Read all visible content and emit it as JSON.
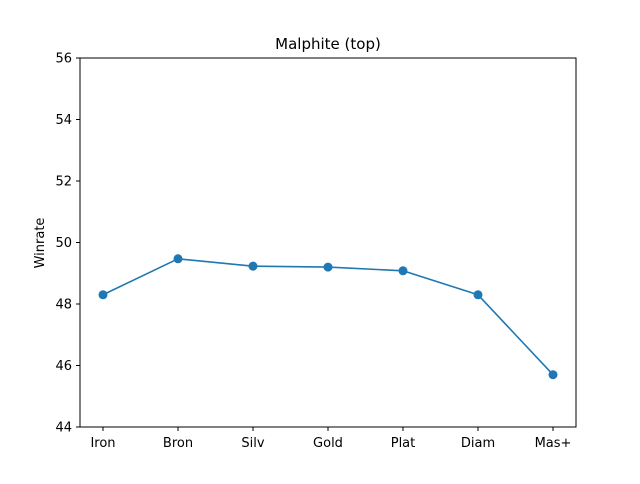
{
  "chart_data": {
    "type": "line",
    "title": "Malphite (top)",
    "xlabel": "",
    "ylabel": "Winrate",
    "categories": [
      "Iron",
      "Bron",
      "Silv",
      "Gold",
      "Plat",
      "Diam",
      "Mas+"
    ],
    "series": [
      {
        "values": [
          48.3,
          49.47,
          49.23,
          49.2,
          49.08,
          48.3,
          45.7
        ],
        "color": "#1f77b4",
        "marker": "circle"
      }
    ],
    "ylim": [
      44,
      56
    ],
    "yticks": [
      44,
      46,
      48,
      50,
      52,
      54,
      56
    ],
    "grid": false,
    "legend": "none"
  }
}
